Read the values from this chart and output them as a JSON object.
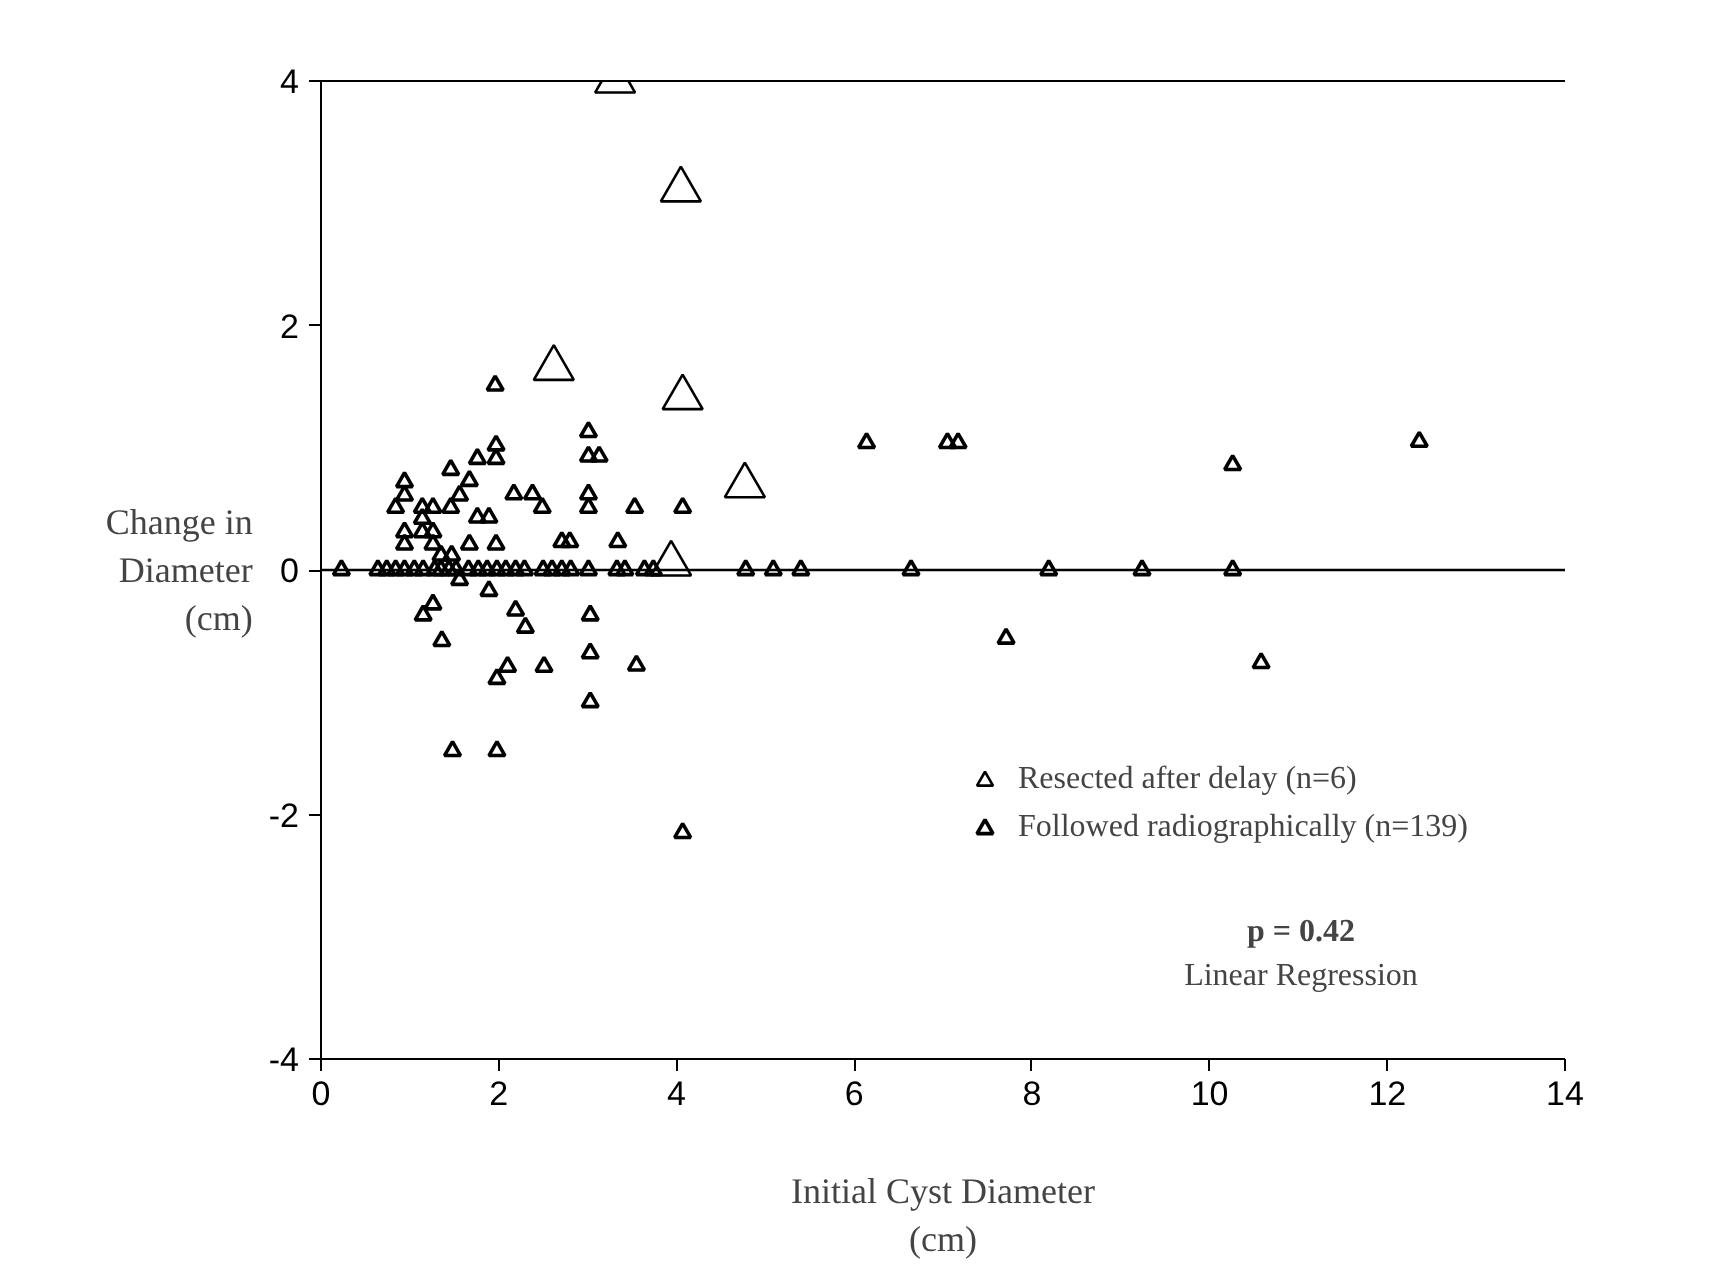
{
  "chart_data": {
    "type": "scatter",
    "xlabel": "Initial Cyst Diameter\n(cm)",
    "ylabel": "Change in\nDiameter\n(cm)",
    "xlim": [
      0,
      14
    ],
    "ylim": [
      -4,
      4
    ],
    "xticks": [
      0,
      2,
      4,
      6,
      8,
      10,
      12,
      14
    ],
    "yticks": [
      -4,
      -2,
      0,
      2,
      4
    ],
    "grid": false,
    "legend": "bottom right",
    "marker": "triangle",
    "ref_lines": [
      {
        "axis": "y",
        "value": 0,
        "label": null
      }
    ],
    "annotations": [
      "p = 0.42",
      "Linear Regression"
    ],
    "series": [
      {
        "name": "Resected after delay (n=6)",
        "color": "#000000",
        "x": [
          3.31,
          4.05,
          2.62,
          4.07,
          4.77,
          3.94
        ],
        "values": [
          4.0,
          3.11,
          1.65,
          1.41,
          0.69,
          0.05
        ]
      },
      {
        "name": "Followed radiographically (n=139)",
        "color": "#000000",
        "x": [
          0.23,
          0.64,
          0.74,
          0.84,
          0.94,
          1.05,
          1.15,
          1.28,
          1.35,
          1.44,
          1.52,
          1.66,
          1.77,
          1.87,
          1.98,
          2.08,
          2.19,
          2.29,
          2.5,
          2.6,
          2.71,
          2.81,
          3.01,
          3.33,
          3.42,
          3.64,
          3.74,
          4.78,
          5.09,
          5.4,
          6.64,
          8.19,
          9.24,
          10.26,
          1.96,
          3.01,
          3.01,
          3.13,
          1.97,
          1.97,
          1.76,
          1.46,
          0.94,
          1.67,
          0.94,
          1.56,
          0.84,
          1.14,
          1.26,
          1.46,
          2.17,
          2.38,
          2.49,
          3.01,
          3.01,
          3.53,
          4.07,
          1.14,
          1.76,
          1.89,
          0.94,
          1.14,
          1.26,
          0.94,
          1.26,
          1.67,
          1.97,
          2.71,
          2.8,
          3.34,
          1.35,
          1.47,
          6.14,
          7.05,
          7.17,
          12.36,
          10.26,
          7.71,
          10.58,
          1.56,
          1.89,
          1.26,
          1.15,
          2.19,
          2.3,
          3.03,
          1.36,
          3.03,
          2.1,
          2.51,
          3.55,
          1.98,
          3.03,
          1.48,
          1.98,
          4.07
        ],
        "values": [
          0,
          0,
          0,
          0,
          0,
          0,
          0,
          0,
          0,
          0,
          0,
          0,
          0,
          0,
          0,
          0,
          0,
          0,
          0,
          0,
          0,
          0,
          0,
          0,
          0,
          0,
          0,
          0,
          0,
          0,
          0,
          0,
          0,
          0,
          1.51,
          1.13,
          0.93,
          0.93,
          1.02,
          0.91,
          0.91,
          0.82,
          0.72,
          0.73,
          0.61,
          0.61,
          0.51,
          0.51,
          0.51,
          0.51,
          0.62,
          0.62,
          0.51,
          0.62,
          0.51,
          0.51,
          0.51,
          0.42,
          0.43,
          0.43,
          0.31,
          0.31,
          0.31,
          0.21,
          0.21,
          0.21,
          0.21,
          0.23,
          0.23,
          0.23,
          0.12,
          0.12,
          1.04,
          1.04,
          1.04,
          1.05,
          0.86,
          -0.56,
          -0.76,
          -0.08,
          -0.17,
          -0.28,
          -0.37,
          -0.33,
          -0.47,
          -0.37,
          -0.58,
          -0.68,
          -0.79,
          -0.79,
          -0.78,
          -0.89,
          -1.08,
          -1.48,
          -1.48,
          -2.15
        ]
      }
    ]
  }
}
